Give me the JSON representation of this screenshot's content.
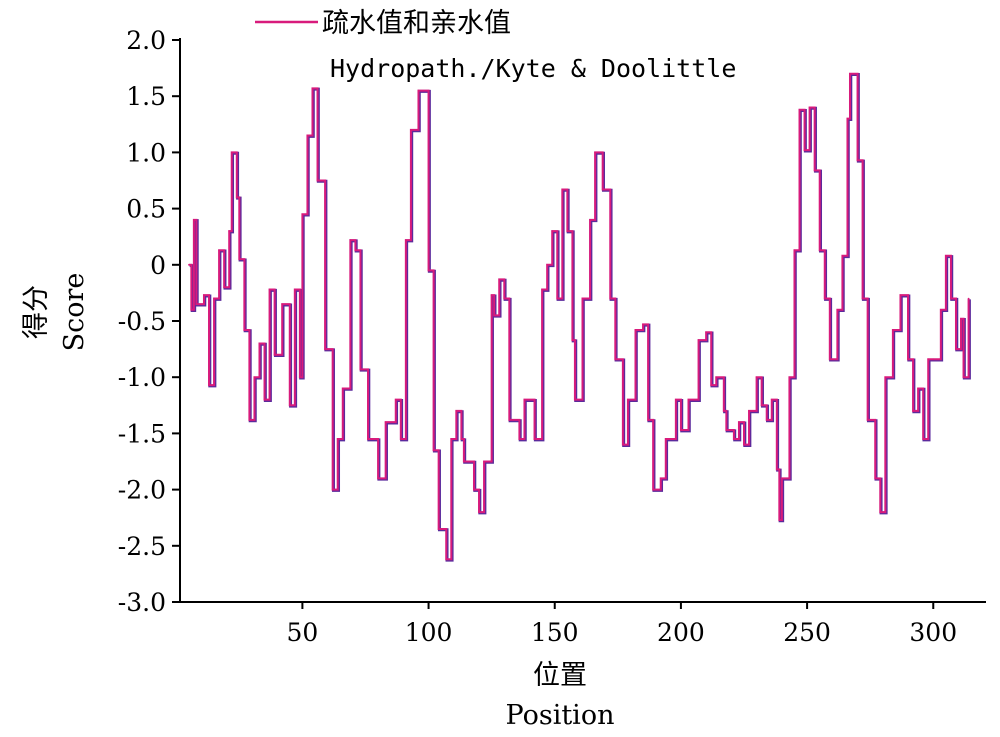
{
  "chart_data": {
    "type": "line",
    "title": "",
    "xlabel": "Position",
    "xlabel_cn": "位置",
    "ylabel": "Score",
    "ylabel_cn": "得分",
    "xlim": [
      1.5,
      320.5
    ],
    "ylim": [
      -3.0,
      2.0
    ],
    "xticks": [
      50,
      100,
      150,
      200,
      250,
      300
    ],
    "xtick_labels": [
      "50",
      "100",
      "150",
      "200",
      "250",
      "300"
    ],
    "yticks": [
      2.0,
      1.5,
      1.0,
      0.5,
      0,
      -0.5,
      -1.0,
      -1.5,
      -2.0,
      -2.5,
      -3.0
    ],
    "ytick_labels": [
      "2.0",
      "1.5",
      "1.0",
      "0.5",
      "0",
      "-0.5",
      "-1.0",
      "-1.5",
      "-2.0",
      "-2.5",
      "-3.0"
    ],
    "grid": false,
    "legend_position": "top",
    "series": [
      {
        "name": "疏水值和亲水值",
        "subtitle": "Hydropath./Kyte & Doolittle",
        "color": "#d81b7c",
        "shadow_color": "#5b2a9c",
        "x": [
          5,
          6,
          7,
          8,
          11,
          13,
          15,
          17,
          19,
          21,
          22,
          24,
          25,
          27,
          29,
          31,
          33,
          35,
          37,
          39,
          42,
          45,
          47,
          49,
          50,
          52,
          54,
          56,
          59,
          62,
          64,
          66,
          69,
          71,
          73,
          76,
          80,
          83,
          87,
          89,
          91,
          93,
          96,
          100,
          102,
          104,
          107,
          109,
          111,
          113,
          114,
          118,
          120,
          122,
          125,
          126,
          128,
          130,
          132,
          136,
          138,
          142,
          145,
          147,
          149,
          151,
          153,
          155,
          157,
          158,
          161,
          164,
          166,
          169,
          172,
          174,
          177,
          179,
          182,
          185,
          187,
          189,
          192,
          194,
          198,
          200,
          203,
          207,
          210,
          212,
          214,
          217,
          218,
          221,
          223,
          225,
          227,
          230,
          232,
          234,
          236,
          238,
          239,
          240,
          243,
          245,
          247,
          249,
          251,
          253,
          255,
          257,
          259,
          262,
          264,
          266,
          267,
          270,
          272,
          274,
          277,
          279,
          281,
          284,
          287,
          290,
          292,
          294,
          296,
          298,
          300,
          303,
          305,
          307,
          309,
          311,
          312,
          314
        ],
        "y": [
          0,
          -0.4,
          0.4,
          -0.35,
          -0.27,
          -1.07,
          -0.3,
          0.13,
          -0.2,
          0.3,
          1.0,
          0.6,
          0.05,
          -0.58,
          -1.38,
          -1.0,
          -0.7,
          -1.2,
          -0.22,
          -0.8,
          -0.35,
          -1.25,
          -0.22,
          -1.0,
          0.45,
          1.15,
          1.57,
          0.75,
          -0.75,
          -2.0,
          -1.55,
          -1.1,
          0.22,
          0.13,
          -0.93,
          -1.55,
          -1.9,
          -1.4,
          -1.2,
          -1.55,
          0.22,
          1.2,
          1.55,
          -0.05,
          -1.65,
          -2.35,
          -2.62,
          -1.55,
          -1.3,
          -1.55,
          -1.75,
          -2.0,
          -2.2,
          -1.75,
          -0.27,
          -0.45,
          -0.13,
          -0.3,
          -1.38,
          -1.55,
          -1.2,
          -1.55,
          -0.22,
          0,
          0.3,
          -0.3,
          0.67,
          0.3,
          -0.67,
          -1.2,
          -0.3,
          0.4,
          1.0,
          0.67,
          -0.3,
          -0.84,
          -1.6,
          -1.2,
          -0.58,
          -0.53,
          -1.38,
          -2.0,
          -1.9,
          -1.55,
          -1.2,
          -1.47,
          -1.2,
          -0.67,
          -0.6,
          -1.07,
          -1.0,
          -1.3,
          -1.47,
          -1.55,
          -1.4,
          -1.6,
          -1.3,
          -1.0,
          -1.25,
          -1.38,
          -1.2,
          -1.82,
          -2.27,
          -1.9,
          -1.0,
          0.13,
          1.38,
          1.02,
          1.4,
          0.84,
          0.13,
          -0.3,
          -0.84,
          -0.4,
          0.08,
          1.3,
          1.7,
          0.93,
          -0.3,
          -1.38,
          -1.9,
          -2.2,
          -1.0,
          -0.58,
          -0.27,
          -0.84,
          -1.3,
          -1.1,
          -1.55,
          -0.84,
          -0.84,
          -0.4,
          0.08,
          -0.3,
          -0.75,
          -0.48,
          -1.0,
          -0.3
        ]
      }
    ]
  }
}
